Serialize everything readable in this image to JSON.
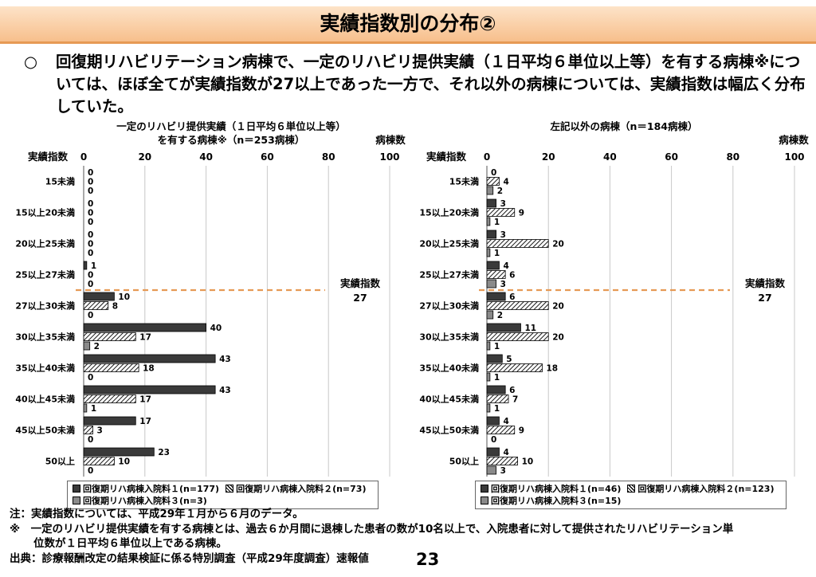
{
  "header": {
    "title": "実績指数別の分布②"
  },
  "summary": {
    "bullet": "○",
    "text": "回復期リハビリテーション病棟で、一定のリハビリ提供実績（１日平均６単位以上等）を有する病棟※については、ほぼ全てが実績指数が27以上であった一方で、それ以外の病棟については、実績指数は幅広く分布していた。"
  },
  "chart_data": [
    {
      "type": "bar",
      "orientation": "horizontal",
      "title_lines": [
        "一定のリハビリ提供実績（１日平均６単位以上等）",
        "を有する病棟※（n＝253病棟）"
      ],
      "ylabel": "実績指数",
      "xlabel": "病棟数",
      "xlim": [
        0,
        100
      ],
      "xticks": [
        0,
        20,
        40,
        60,
        80,
        100
      ],
      "categories": [
        "15未満",
        "15以上20未満",
        "20以上25未満",
        "25以上27未満",
        "27以上30未満",
        "30以上35未満",
        "35以上40未満",
        "40以上45未満",
        "45以上50未満",
        "50以上"
      ],
      "series": [
        {
          "name": "回復期リハ病棟入院料１(n=177)",
          "color": "#3a3a3a",
          "pattern": "solid",
          "values": [
            0,
            0,
            0,
            1,
            10,
            40,
            43,
            43,
            17,
            23
          ]
        },
        {
          "name": "回復期リハ病棟入院料２(n=73)",
          "color": "#000000",
          "pattern": "hatch",
          "values": [
            0,
            0,
            0,
            0,
            8,
            17,
            18,
            17,
            3,
            10
          ]
        },
        {
          "name": "回復期リハ病棟入院料３(n=3)",
          "color": "#8a8a8a",
          "pattern": "solid",
          "values": [
            0,
            0,
            0,
            0,
            0,
            2,
            0,
            1,
            0,
            0
          ]
        }
      ],
      "threshold": {
        "label_line1": "実績指数",
        "label_line2": "27",
        "color": "#e69a55"
      }
    },
    {
      "type": "bar",
      "orientation": "horizontal",
      "title_lines": [
        "左記以外の病棟（n＝184病棟）"
      ],
      "ylabel": "実績指数",
      "xlabel": "病棟数",
      "xlim": [
        0,
        100
      ],
      "xticks": [
        0,
        20,
        40,
        60,
        80,
        100
      ],
      "categories": [
        "15未満",
        "15以上20未満",
        "20以上25未満",
        "25以上27未満",
        "27以上30未満",
        "30以上35未満",
        "35以上40未満",
        "40以上45未満",
        "45以上50未満",
        "50以上"
      ],
      "series": [
        {
          "name": "回復期リハ病棟入院料１(n=46)",
          "color": "#3a3a3a",
          "pattern": "solid",
          "values": [
            0,
            3,
            3,
            4,
            6,
            11,
            5,
            6,
            4,
            4
          ]
        },
        {
          "name": "回復期リハ病棟入院料２(n=123)",
          "color": "#000000",
          "pattern": "hatch",
          "values": [
            4,
            9,
            20,
            6,
            20,
            20,
            18,
            7,
            9,
            10
          ]
        },
        {
          "name": "回復期リハ病棟入院料３(n=15)",
          "color": "#8a8a8a",
          "pattern": "solid",
          "values": [
            2,
            1,
            1,
            3,
            2,
            1,
            1,
            1,
            0,
            3
          ]
        }
      ],
      "threshold": {
        "label_line1": "実績指数",
        "label_line2": "27",
        "color": "#e69a55"
      }
    }
  ],
  "notes": {
    "line1": "注：実績指数については、平成29年１月から６月のデータ。",
    "line2": "※　一定のリハビリ提供実績を有する病棟とは、過去６か月間に退棟した患者の数が10名以上で、入院患者に対して提供されたリハビリテーション単",
    "line3": "位数が１日平均６単位以上である病棟。",
    "source": "出典：診療報酬改定の結果検証に係る特別調査（平成29年度調査）速報値"
  },
  "page_number": "23"
}
